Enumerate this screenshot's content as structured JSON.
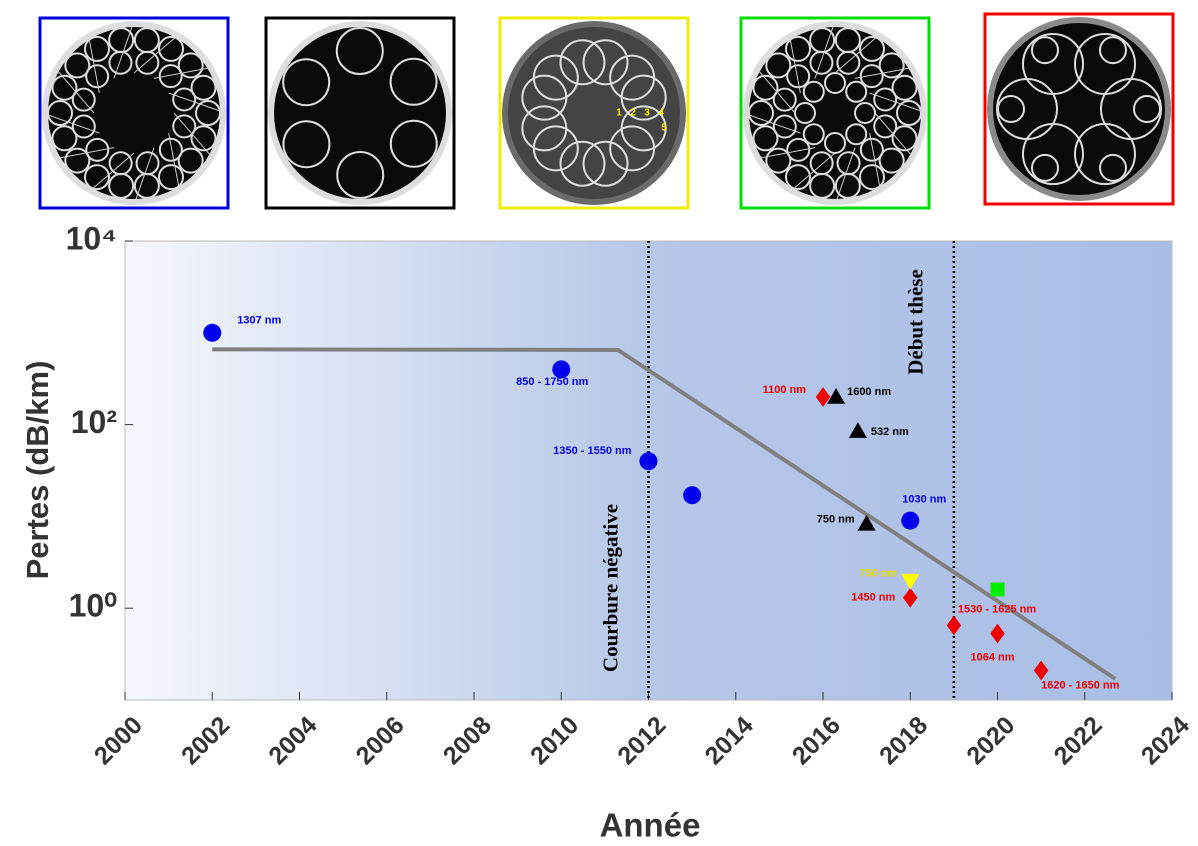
{
  "chart_data": {
    "type": "scatter",
    "xlabel": "Année",
    "ylabel": "Pertes (dB/km)",
    "xlim": [
      2000,
      2024
    ],
    "xticks": [
      2000,
      2002,
      2004,
      2006,
      2008,
      2010,
      2012,
      2014,
      2016,
      2018,
      2020,
      2022,
      2024
    ],
    "ylim": [
      0.1,
      10000
    ],
    "yscale": "log",
    "yticks": [
      {
        "value": 10000,
        "label": "10⁴"
      },
      {
        "value": 100,
        "label": "10²"
      },
      {
        "value": 1,
        "label": "10⁰"
      }
    ],
    "series": [
      {
        "type": "scatter",
        "marker": "circle",
        "color": "#0000ee",
        "x": [
          2002,
          2010,
          2012,
          2013,
          2018
        ],
        "values": [
          1000,
          400,
          40,
          17,
          9
        ],
        "labels": [
          "1307 nm",
          "850 - 1750 nm",
          "1350 - 1550 nm",
          null,
          "1030 nm"
        ]
      },
      {
        "type": "scatter",
        "marker": "triangle-up",
        "color": "#000000",
        "x": [
          2016.3,
          2016.8,
          2017
        ],
        "values": [
          200,
          85,
          8.3
        ],
        "labels": [
          "1600 nm",
          "532 nm",
          "750 nm"
        ]
      },
      {
        "type": "scatter",
        "marker": "diamond",
        "color": "#ee0000",
        "x": [
          2016,
          2018,
          2019,
          2020,
          2021
        ],
        "values": [
          200,
          1.3,
          0.65,
          0.53,
          0.21
        ],
        "labels": [
          "1100 nm",
          "1450 nm",
          "1530 - 1625 nm",
          "1064 nm",
          "1620 - 1650 nm"
        ]
      },
      {
        "type": "scatter",
        "marker": "triangle-down",
        "color": "#ffff00",
        "label_color": "#e6d800",
        "x": [
          2018
        ],
        "values": [
          2
        ],
        "labels": [
          "750 nm"
        ]
      },
      {
        "type": "scatter",
        "marker": "square",
        "color": "#00ee00",
        "x": [
          2020
        ],
        "values": [
          1.6
        ],
        "labels": [
          null
        ]
      },
      {
        "type": "line",
        "color": "#808080",
        "x": [
          2002,
          2011.3,
          2022.7
        ],
        "values": [
          660,
          650,
          0.17
        ]
      }
    ],
    "annotations": [
      {
        "x": 2012,
        "text": "Courbure négative"
      },
      {
        "x": 2019,
        "text": "Début thèse"
      }
    ]
  },
  "insets": {
    "port_labels": [
      "1",
      "2",
      "3",
      "4",
      "5"
    ]
  }
}
